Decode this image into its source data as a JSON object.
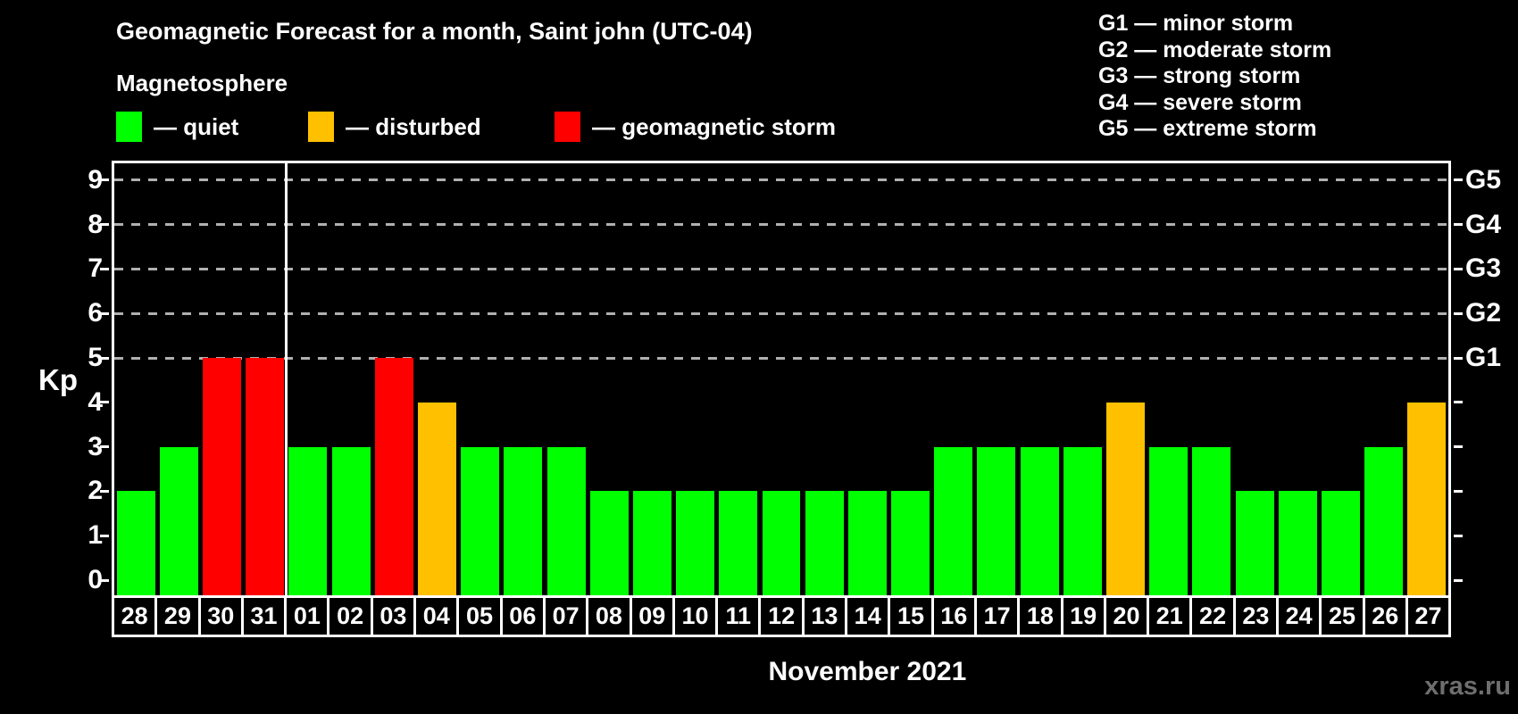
{
  "title": "Geomagnetic Forecast for a month, Saint john (UTC-04)",
  "subtitle": "Magnetosphere",
  "legend": {
    "items": [
      {
        "key": "quiet",
        "label": "— quiet"
      },
      {
        "key": "disturbed",
        "label": "— disturbed"
      },
      {
        "key": "storm",
        "label": "— geomagnetic storm"
      }
    ]
  },
  "storm_scale_legend": [
    "G1 — minor storm",
    "G2 — moderate storm",
    "G3 — strong storm",
    "G4 — severe storm",
    "G5 — extreme storm"
  ],
  "watermark": "xras.ru",
  "chart_data": {
    "type": "bar",
    "title": "Geomagnetic Forecast for a month, Saint john (UTC-04)",
    "xlabel": "November 2021",
    "ylabel": "Kp",
    "ylim": [
      0,
      9
    ],
    "categories": [
      "28",
      "29",
      "30",
      "31",
      "01",
      "02",
      "03",
      "04",
      "05",
      "06",
      "07",
      "08",
      "09",
      "10",
      "11",
      "12",
      "13",
      "14",
      "15",
      "16",
      "17",
      "18",
      "19",
      "20",
      "21",
      "22",
      "23",
      "24",
      "25",
      "26",
      "27"
    ],
    "values": [
      2,
      3,
      5,
      5,
      3,
      3,
      5,
      4,
      3,
      3,
      3,
      2,
      2,
      2,
      2,
      2,
      2,
      2,
      2,
      3,
      3,
      3,
      3,
      4,
      3,
      3,
      2,
      2,
      2,
      3,
      4
    ],
    "statuses": [
      "quiet",
      "quiet",
      "storm",
      "storm",
      "quiet",
      "quiet",
      "storm",
      "disturbed",
      "quiet",
      "quiet",
      "quiet",
      "quiet",
      "quiet",
      "quiet",
      "quiet",
      "quiet",
      "quiet",
      "quiet",
      "quiet",
      "quiet",
      "quiet",
      "quiet",
      "quiet",
      "disturbed",
      "quiet",
      "quiet",
      "quiet",
      "quiet",
      "quiet",
      "quiet",
      "disturbed"
    ],
    "colors": {
      "quiet": "#00ff00",
      "disturbed": "#ffc000",
      "storm": "#ff0000"
    },
    "left_ticks": [
      0,
      1,
      2,
      3,
      4,
      5,
      6,
      7,
      8,
      9
    ],
    "right_tick_labels": {
      "5": "G1",
      "6": "G2",
      "7": "G3",
      "8": "G4",
      "9": "G5"
    },
    "gridlines_at": [
      5,
      6,
      7,
      8,
      9
    ],
    "month_separator_after_index": 3,
    "legend_position": "top",
    "grid": "dashed horizontal at storm levels only"
  }
}
